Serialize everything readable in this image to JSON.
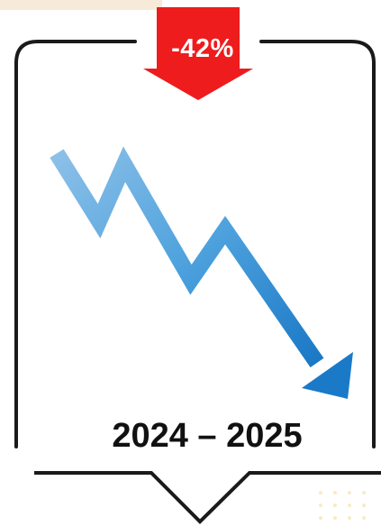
{
  "badge": {
    "value": "-42%",
    "color": "#ee1c1c"
  },
  "period": {
    "label": "2024 – 2025"
  },
  "trend": {
    "direction": "down",
    "color_start": "#8cc0e8",
    "color_end": "#1a7ac8"
  },
  "icons": {
    "badge_arrow": "down-arrow-icon",
    "trend_arrow": "zigzag-down-arrow-icon"
  }
}
